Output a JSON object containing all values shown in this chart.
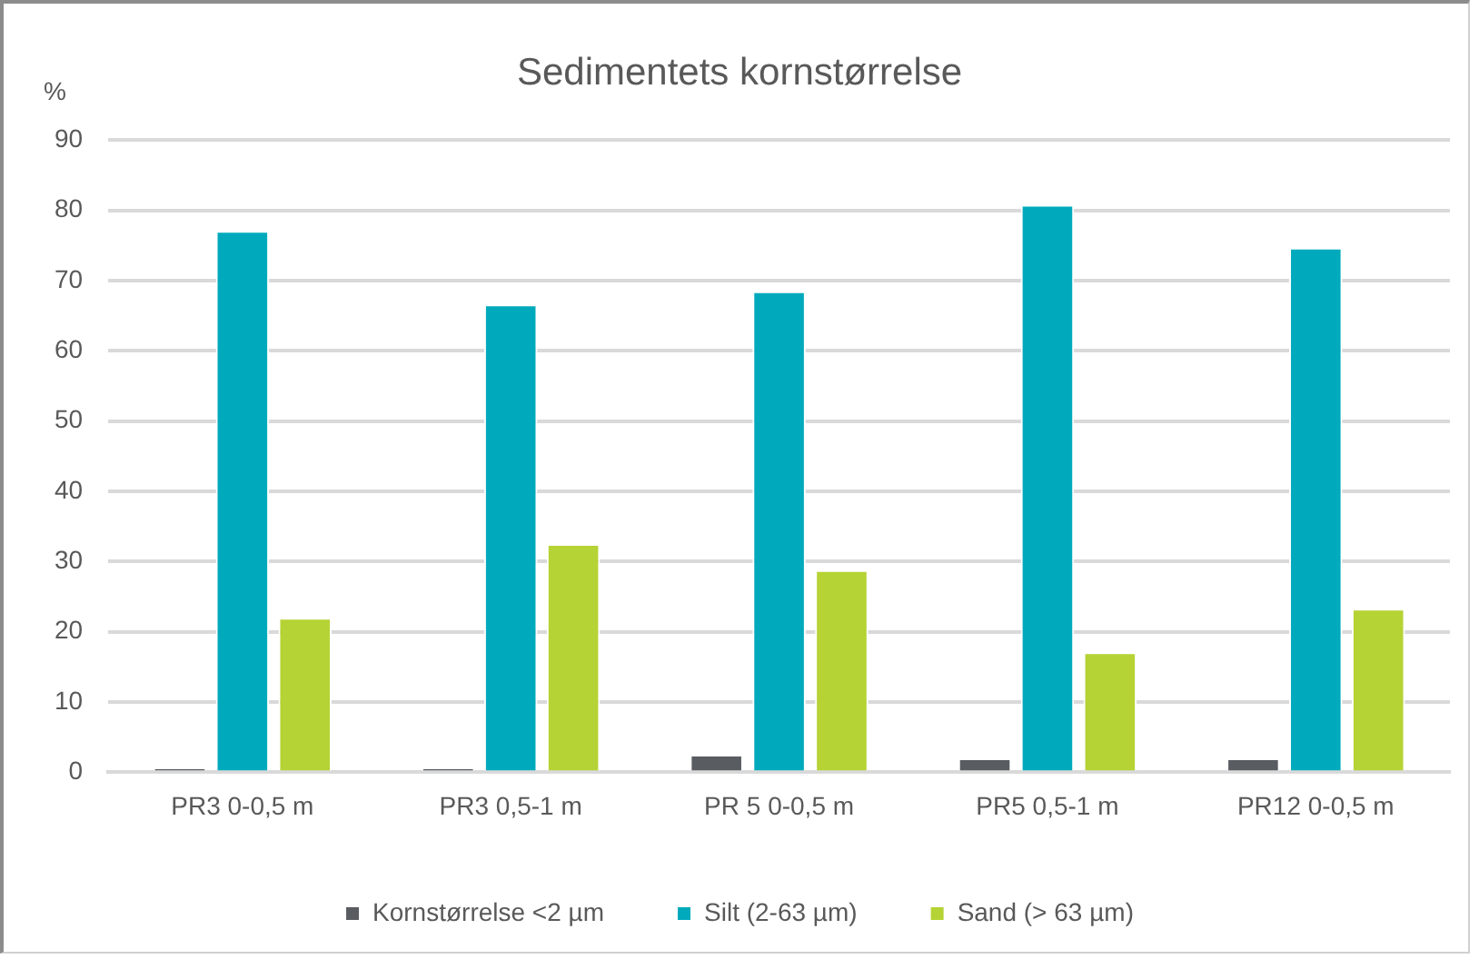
{
  "chart_data": {
    "type": "bar",
    "title": "Sedimentets kornstørrelse",
    "ylabel": "%",
    "categories": [
      "PR3 0-0,5 m",
      "PR3 0,5-1 m",
      "PR 5 0-0,5 m",
      "PR5 0,5-1 m",
      "PR12 0-0,5 m"
    ],
    "series": [
      {
        "name": "Kornstørrelse <2 µm",
        "color": "#595d61",
        "values": [
          0.6,
          0.6,
          2.5,
          2.0,
          2.0
        ]
      },
      {
        "name": "Silt (2-63 µm)",
        "color": "#00aabc",
        "values": [
          77.1,
          66.6,
          68.5,
          80.8,
          74.7
        ]
      },
      {
        "name": "Sand (> 63 µm)",
        "color": "#b5d334",
        "values": [
          22.0,
          32.5,
          28.8,
          17.1,
          23.3
        ]
      }
    ],
    "ylim": [
      0,
      90
    ],
    "yticks": [
      0,
      10,
      20,
      30,
      40,
      50,
      60,
      70,
      80,
      90
    ],
    "grid": "y",
    "legend": "bottom"
  }
}
